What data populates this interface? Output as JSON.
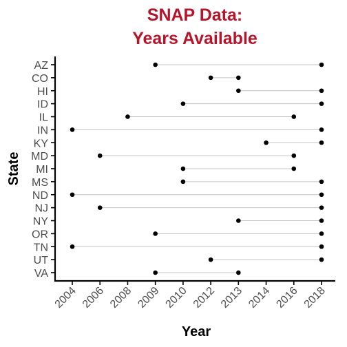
{
  "chart_data": {
    "type": "scatter",
    "title_lines": [
      "SNAP Data:",
      "Years Available"
    ],
    "xlabel": "Year",
    "ylabel": "State",
    "x_ticks": [
      "2004",
      "2006",
      "2008",
      "2009",
      "2010",
      "2012",
      "2013",
      "2014",
      "2016",
      "2018"
    ],
    "states": [
      "AZ",
      "CO",
      "HI",
      "ID",
      "IL",
      "IN",
      "KY",
      "MD",
      "MI",
      "MS",
      "ND",
      "NJ",
      "NY",
      "OR",
      "TN",
      "UT",
      "VA"
    ],
    "ranges": [
      {
        "state": "AZ",
        "start": "2009",
        "end": "2018"
      },
      {
        "state": "CO",
        "start": "2012",
        "end": "2013"
      },
      {
        "state": "HI",
        "start": "2013",
        "end": "2018"
      },
      {
        "state": "ID",
        "start": "2010",
        "end": "2018"
      },
      {
        "state": "IL",
        "start": "2008",
        "end": "2016"
      },
      {
        "state": "IN",
        "start": "2004",
        "end": "2018"
      },
      {
        "state": "KY",
        "start": "2014",
        "end": "2018"
      },
      {
        "state": "MD",
        "start": "2006",
        "end": "2016"
      },
      {
        "state": "MI",
        "start": "2010",
        "end": "2016"
      },
      {
        "state": "MS",
        "start": "2010",
        "end": "2018"
      },
      {
        "state": "ND",
        "start": "2004",
        "end": "2018"
      },
      {
        "state": "NJ",
        "start": "2006",
        "end": "2018"
      },
      {
        "state": "NY",
        "start": "2013",
        "end": "2018"
      },
      {
        "state": "OR",
        "start": "2009",
        "end": "2018"
      },
      {
        "state": "TN",
        "start": "2004",
        "end": "2018"
      },
      {
        "state": "UT",
        "start": "2012",
        "end": "2018"
      },
      {
        "state": "VA",
        "start": "2009",
        "end": "2013"
      }
    ],
    "grid": false,
    "legend": "none",
    "colors": {
      "title": "#b5152b",
      "points": "#000000",
      "segments": "#c4c4c4"
    }
  }
}
